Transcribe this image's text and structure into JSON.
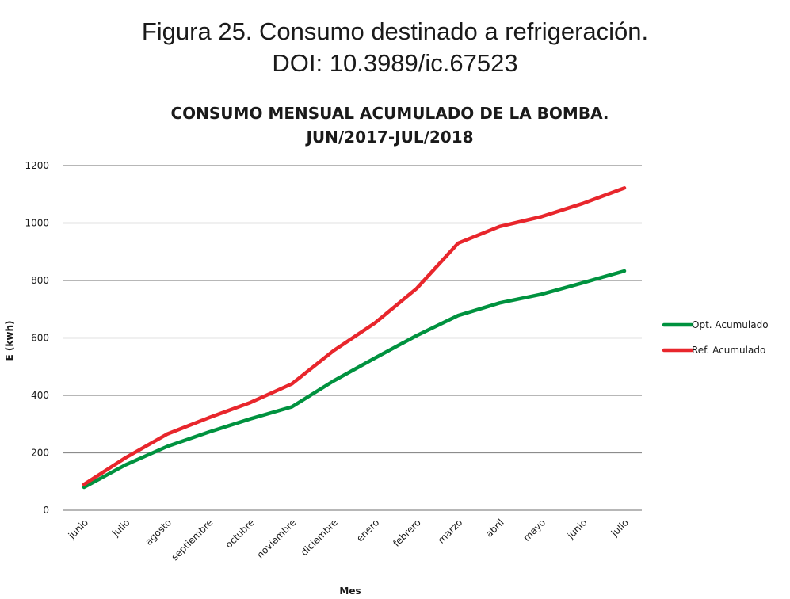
{
  "caption": {
    "line1": "Figura 25. Consumo destinado a refrigeración.",
    "line2": "DOI: 10.3989/ic.67523"
  },
  "chart_data": {
    "type": "line",
    "title_line1": "CONSUMO MENSUAL ACUMULADO DE LA BOMBA.",
    "title_line2": "JUN/2017-JUL/2018",
    "xlabel": "Mes",
    "ylabel": "E (kwh)",
    "categories": [
      "junio",
      "julio",
      "agosto",
      "septiembre",
      "octubre",
      "noviembre",
      "diciembre",
      "enero",
      "febrero",
      "marzo",
      "abril",
      "mayo",
      "junio",
      "julio"
    ],
    "ylim": [
      0,
      1200
    ],
    "yticks": [
      0,
      200,
      400,
      600,
      800,
      1000,
      1200
    ],
    "grid": true,
    "legend_position": "right",
    "series": [
      {
        "name": "Opt. Acumulado",
        "color": "#00923f",
        "values": [
          80,
          158,
          222,
          272,
          318,
          360,
          450,
          530,
          608,
          678,
          722,
          752,
          792,
          833
        ]
      },
      {
        "name": "Ref. Acumulado",
        "color": "#e8262c",
        "values": [
          90,
          183,
          265,
          322,
          375,
          440,
          555,
          652,
          772,
          930,
          988,
          1022,
          1068,
          1122
        ]
      }
    ]
  }
}
